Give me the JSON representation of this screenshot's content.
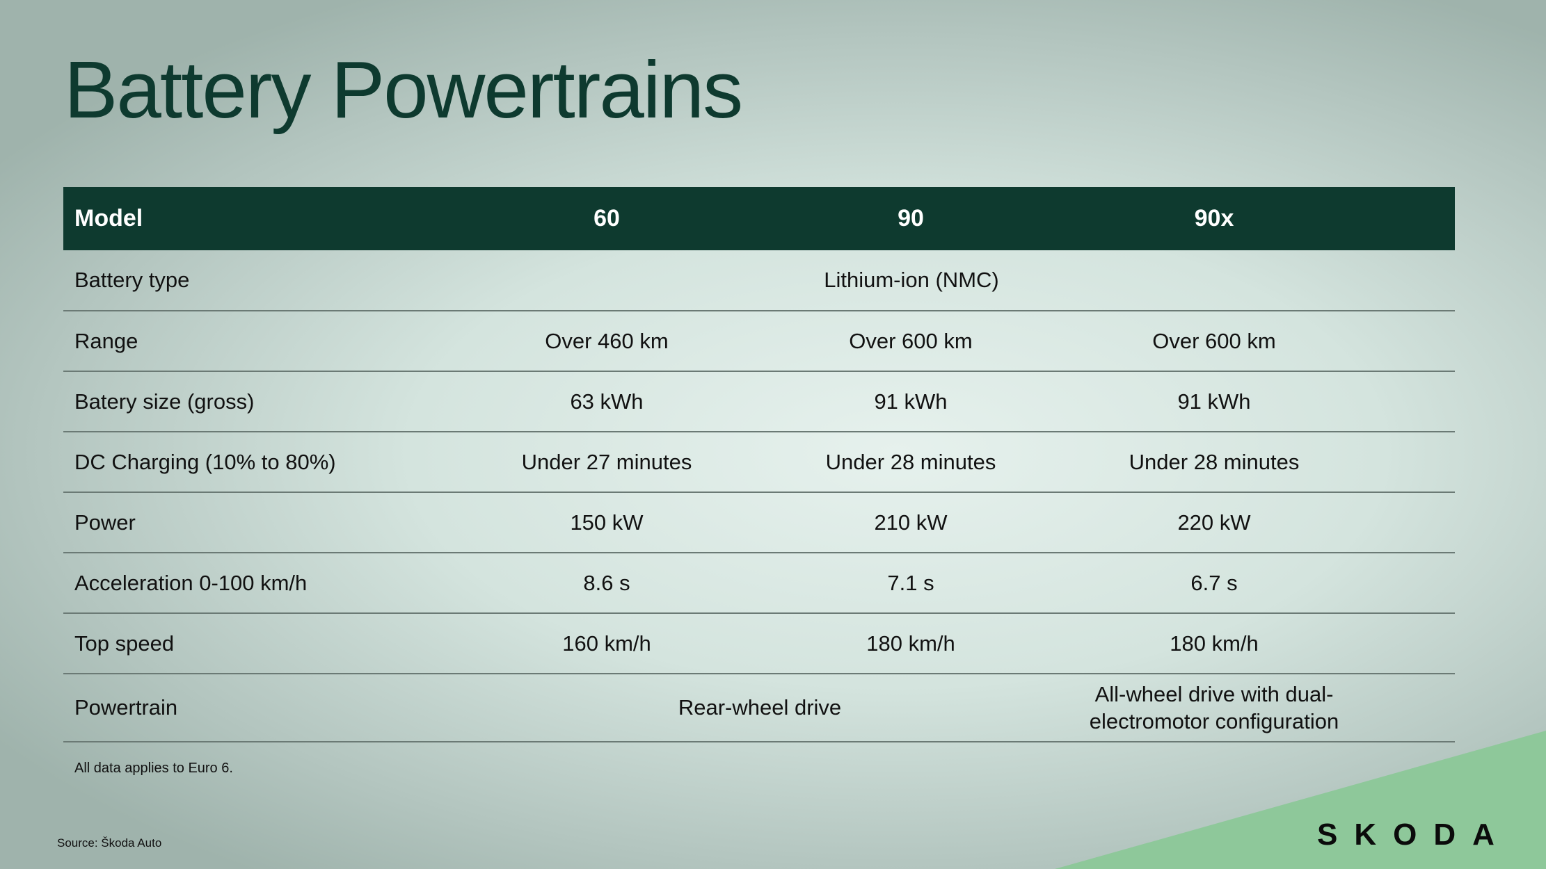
{
  "title": "Battery Powertrains",
  "table": {
    "headers": [
      "Model",
      "60",
      "90",
      "90x"
    ],
    "rows": [
      {
        "label": "Battery type",
        "merged_all": "Lithium-ion (NMC)"
      },
      {
        "label": "Range",
        "values": [
          "Over 460 km",
          "Over 600 km",
          "Over 600 km"
        ]
      },
      {
        "label": "Batery size (gross)",
        "values": [
          "63 kWh",
          "91 kWh",
          "91 kWh"
        ]
      },
      {
        "label": "DC Charging (10% to 80%)",
        "values": [
          "Under 27 minutes",
          "Under 28 minutes",
          "Under 28 minutes"
        ]
      },
      {
        "label": "Power",
        "values": [
          "150 kW",
          "210 kW",
          "220 kW"
        ]
      },
      {
        "label": "Acceleration 0-100 km/h",
        "values": [
          "8.6 s",
          "7.1 s",
          "6.7 s"
        ]
      },
      {
        "label": "Top speed",
        "values": [
          "160 km/h",
          "180 km/h",
          "180 km/h"
        ]
      },
      {
        "label": "Powertrain",
        "merged_60_90": "Rear-wheel drive",
        "value_90x": "All-wheel drive with dual-electromotor configuration"
      }
    ]
  },
  "note": "All data applies to Euro 6.",
  "source": "Source: Škoda Auto",
  "logo_text": "SKODA",
  "colors": {
    "header_bg": "#0e3a2f",
    "title": "#0e3a2f",
    "accent_green": "#8ec89a"
  }
}
